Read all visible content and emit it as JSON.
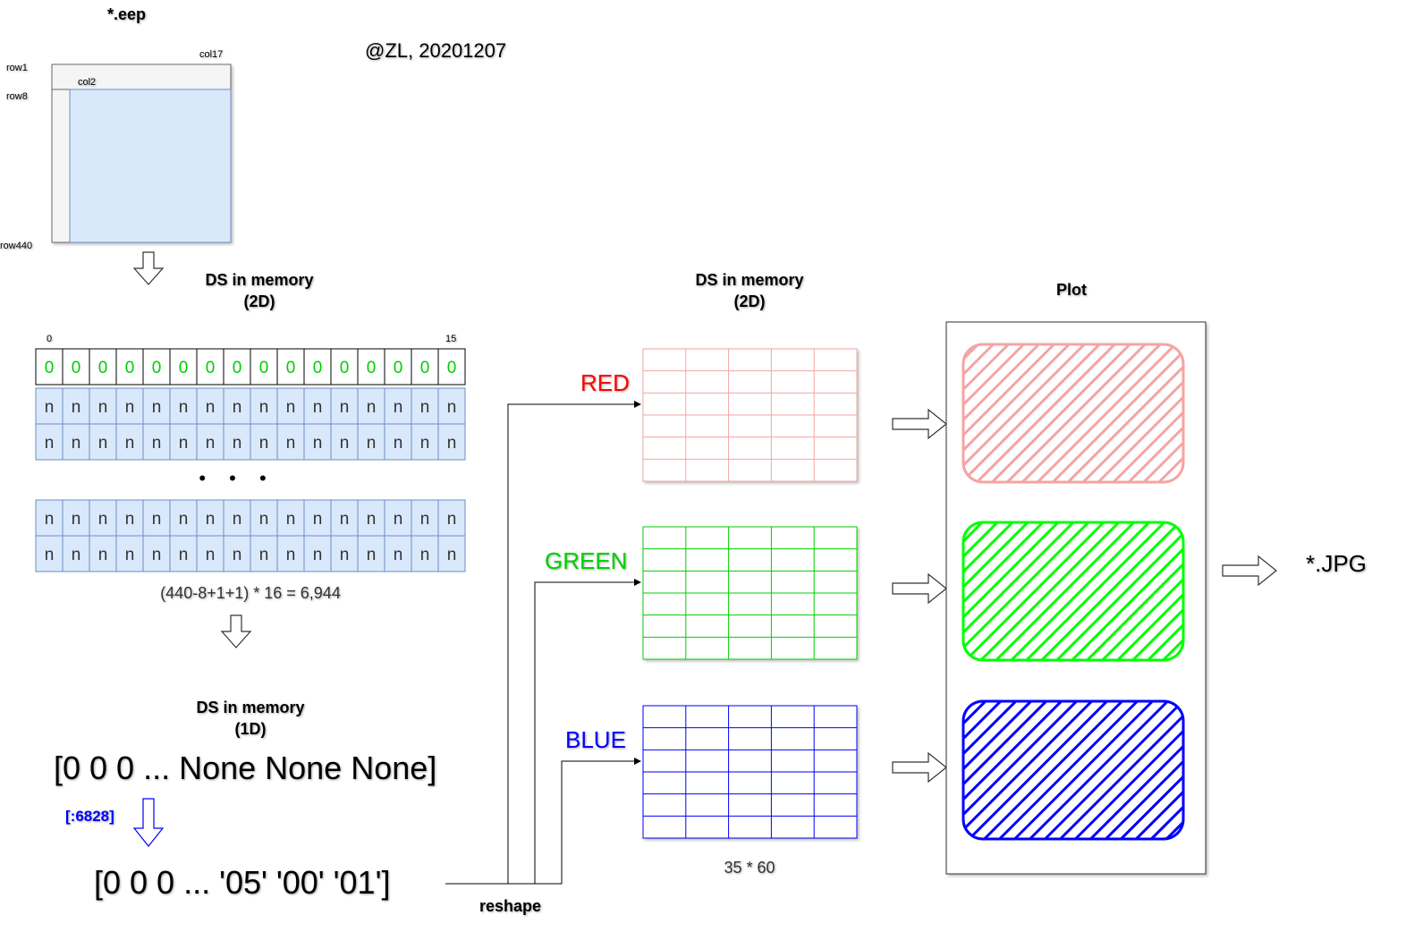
{
  "top_title": "*.eep",
  "author": "@ZL, 20201207",
  "eep_grid": {
    "row_first": "row1",
    "row_second": "row8",
    "row_last": "row440",
    "col_first": "col2",
    "col_last": "col17"
  },
  "ds2d_left": {
    "title_line1": "DS in memory",
    "title_line2": "(2D)",
    "index_start": "0",
    "index_end": "15",
    "header_value": "0",
    "cell_value": "n",
    "columns": 16,
    "ellipsis": "• • •",
    "formula": "(440-8+1+1) * 16 = 6,944"
  },
  "ds1d": {
    "title_line1": "DS in memory",
    "title_line2": "(1D)",
    "array_raw": "[0 0 0 ... None None None]",
    "slice_label": "[:6828]",
    "array_sliced": "[0 0 0 ... '05' '00' '01']"
  },
  "reshape": {
    "label": "reshape"
  },
  "ds2d_right": {
    "title_line1": "DS in memory",
    "title_line2": "(2D)",
    "size_label": "35 * 60"
  },
  "channels": [
    {
      "label": "RED",
      "label_color": "#ff0000",
      "grid_color": "#f4a4a4",
      "plot_color": "#f4a4a4"
    },
    {
      "label": "GREEN",
      "label_color": "#00d000",
      "grid_color": "#00d000",
      "plot_color": "#00ff00"
    },
    {
      "label": "BLUE",
      "label_color": "#0000ff",
      "grid_color": "#0000ff",
      "plot_color": "#0000ff"
    }
  ],
  "plot": {
    "title": "Plot"
  },
  "output": {
    "label": "*.JPG"
  },
  "colors": {
    "cell_fill": "#dae8fc",
    "cell_stroke": "#6c8ebf",
    "header_text": "#00cc00",
    "slice_text": "#0000ff"
  }
}
